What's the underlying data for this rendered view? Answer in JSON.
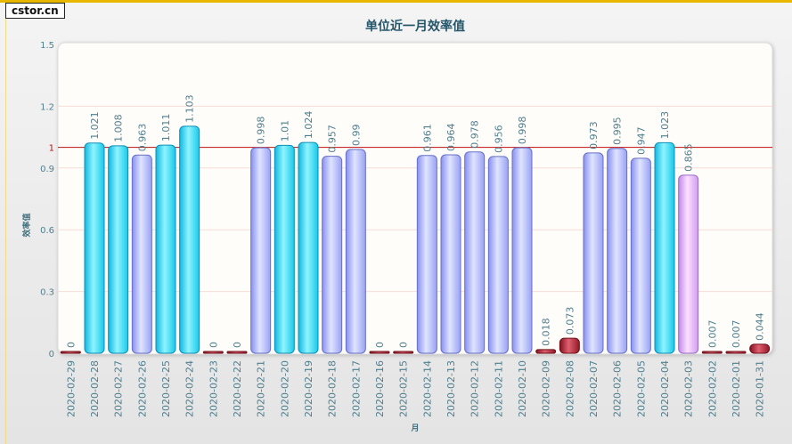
{
  "logo": "cstor.cn",
  "chart_data": {
    "type": "bar",
    "title": "单位近一月效率值",
    "xlabel": "月",
    "ylabel": "效率值",
    "ylim": [
      0,
      1.5
    ],
    "yticks": [
      0,
      0.3,
      0.6,
      0.9,
      1,
      1.2,
      1.5
    ],
    "reference_line": 1,
    "grid": true,
    "categories": [
      "2020-02-29",
      "2020-02-28",
      "2020-02-27",
      "2020-02-26",
      "2020-02-25",
      "2020-02-24",
      "2020-02-23",
      "2020-02-22",
      "2020-02-21",
      "2020-02-20",
      "2020-02-19",
      "2020-02-18",
      "2020-02-17",
      "2020-02-16",
      "2020-02-15",
      "2020-02-14",
      "2020-02-13",
      "2020-02-12",
      "2020-02-11",
      "2020-02-10",
      "2020-02-09",
      "2020-02-08",
      "2020-02-07",
      "2020-02-06",
      "2020-02-05",
      "2020-02-04",
      "2020-02-03",
      "2020-02-02",
      "2020-02-01",
      "2020-01-31"
    ],
    "values": [
      0,
      1.021,
      1.008,
      0.963,
      1.011,
      1.103,
      0,
      0,
      0.998,
      1.01,
      1.024,
      0.957,
      0.99,
      0,
      0,
      0.961,
      0.964,
      0.978,
      0.956,
      0.998,
      0.018,
      0.073,
      0.973,
      0.995,
      0.947,
      1.023,
      0.865,
      0.007,
      0.007,
      0.044
    ],
    "colors": {
      "high": "#2ad4f0",
      "normal": "#a8b0ff",
      "mid": "#e0a8f8",
      "low": "#a01830",
      "ref": "#c01010"
    }
  }
}
